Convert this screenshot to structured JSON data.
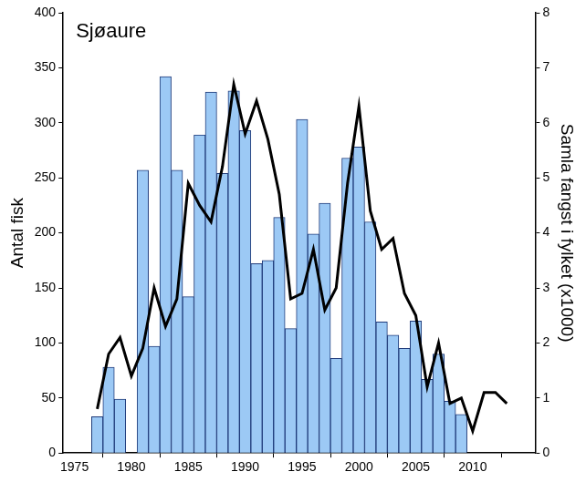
{
  "chart_data": {
    "type": "bar",
    "title": "Sjøaure",
    "ylabel": "Antal fisk",
    "y2label": "Samla fangst i fylket (x1000)",
    "x": [
      1977,
      1978,
      1979,
      1980,
      1981,
      1982,
      1983,
      1984,
      1985,
      1986,
      1987,
      1988,
      1989,
      1990,
      1991,
      1992,
      1993,
      1994,
      1995,
      1996,
      1997,
      1998,
      1999,
      2000,
      2001,
      2002,
      2003,
      2004,
      2005,
      2006,
      2007,
      2008,
      2009,
      2010,
      2011,
      2012,
      2013
    ],
    "series": [
      {
        "type": "bar",
        "color": "#9cc9f5",
        "values": [
          33,
          78,
          49,
          null,
          257,
          97,
          342,
          257,
          142,
          289,
          328,
          254,
          329,
          293,
          172,
          175,
          214,
          113,
          303,
          199,
          227,
          86,
          268,
          278,
          210,
          119,
          107,
          95,
          120,
          67,
          90,
          47,
          35,
          null,
          null,
          null,
          null
        ]
      },
      {
        "type": "line",
        "color": "#000000",
        "axis": "y2",
        "values": [
          0.8,
          1.8,
          2.1,
          1.4,
          1.9,
          3.0,
          2.3,
          2.8,
          4.9,
          4.5,
          4.2,
          5.2,
          6.7,
          5.8,
          6.4,
          5.7,
          4.7,
          2.8,
          2.9,
          3.7,
          2.6,
          3.0,
          4.9,
          6.3,
          4.4,
          3.7,
          3.9,
          2.9,
          2.5,
          1.2,
          2.0,
          0.9,
          1.0,
          0.4,
          1.1,
          1.1,
          0.9
        ]
      }
    ],
    "xlim": [
      1974,
      2015.5
    ],
    "xticks": [
      1975,
      1980,
      1985,
      1990,
      1995,
      2000,
      2005,
      2010
    ],
    "ylim": [
      0,
      400
    ],
    "yticks": [
      0,
      50,
      100,
      150,
      200,
      250,
      300,
      350,
      400
    ],
    "y2lim": [
      0,
      8
    ],
    "y2ticks": [
      0,
      1,
      2,
      3,
      4,
      5,
      6,
      7,
      8
    ],
    "grid": false
  }
}
